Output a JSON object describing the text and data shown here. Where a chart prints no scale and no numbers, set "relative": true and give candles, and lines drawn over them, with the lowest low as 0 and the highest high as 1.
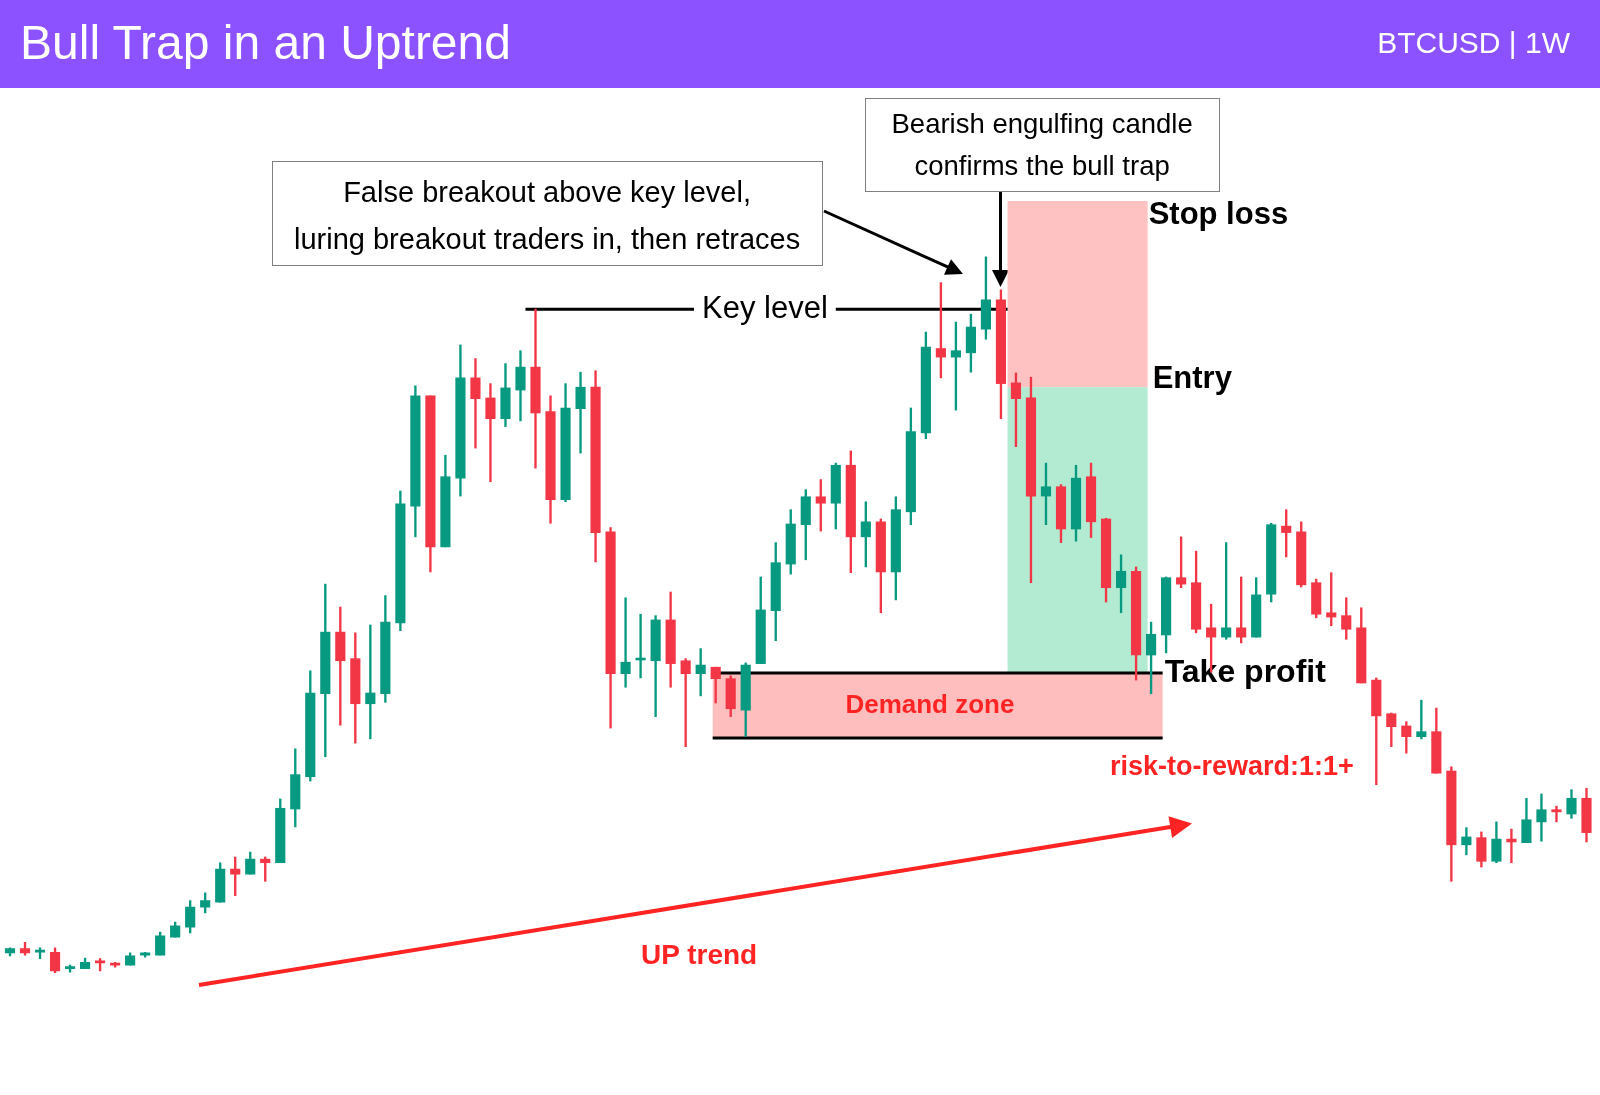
{
  "chart_data": {
    "type": "candlestick",
    "title": "Bull Trap in an Uptrend",
    "subtitle": "BTCUSD | 1W",
    "relative": true,
    "categories": [
      null,
      null,
      null,
      null,
      null,
      null,
      null,
      null,
      null,
      null,
      null,
      null,
      null,
      null,
      null,
      null,
      null,
      null,
      null,
      null,
      null,
      null,
      null,
      null,
      null,
      null,
      null,
      null,
      null,
      null,
      null,
      null,
      null,
      null,
      null,
      null,
      null,
      null,
      null,
      null,
      null,
      null,
      null,
      null,
      null,
      null,
      null,
      null,
      null,
      null,
      null,
      null,
      null,
      null,
      null,
      null,
      null,
      null,
      null,
      null,
      null,
      null,
      null,
      null,
      null,
      null,
      null,
      null,
      null,
      null,
      null,
      null,
      null,
      null,
      null,
      null,
      null,
      null,
      null,
      null,
      null,
      null,
      null,
      null,
      null,
      null,
      null,
      null,
      null,
      null,
      null,
      null,
      null,
      null,
      null,
      null,
      null,
      null,
      null,
      null,
      null,
      null,
      null,
      null,
      null,
      null
    ],
    "ohlc": [
      [
        0.028,
        0.035,
        0.024,
        0.034
      ],
      [
        0.034,
        0.043,
        0.025,
        0.028
      ],
      [
        0.029,
        0.035,
        0.02,
        0.032
      ],
      [
        0.029,
        0.035,
        0,
        0.003
      ],
      [
        0.006,
        0.011,
        0.001,
        0.008
      ],
      [
        0.006,
        0.021,
        0.006,
        0.015
      ],
      [
        0.017,
        0.02,
        0.003,
        0.014
      ],
      [
        0.014,
        0.015,
        0.008,
        0.011
      ],
      [
        0.011,
        0.028,
        0.011,
        0.024
      ],
      [
        0.025,
        0.029,
        0.022,
        0.028
      ],
      [
        0.025,
        0.057,
        0.025,
        0.052
      ],
      [
        0.05,
        0.071,
        0.05,
        0.066
      ],
      [
        0.064,
        0.101,
        0.056,
        0.092
      ],
      [
        0.092,
        0.112,
        0.084,
        0.101
      ],
      [
        0.099,
        0.154,
        0.099,
        0.145
      ],
      [
        0.145,
        0.162,
        0.108,
        0.138
      ],
      [
        0.138,
        0.169,
        0.138,
        0.159
      ],
      [
        0.159,
        0.162,
        0.128,
        0.154
      ],
      [
        0.154,
        0.243,
        0.154,
        0.23
      ],
      [
        0.229,
        0.313,
        0.204,
        0.277
      ],
      [
        0.274,
        0.422,
        0.268,
        0.391
      ],
      [
        0.39,
        0.543,
        0.302,
        0.476
      ],
      [
        0.476,
        0.511,
        0.346,
        0.436
      ],
      [
        0.439,
        0.475,
        0.321,
        0.376
      ],
      [
        0.376,
        0.486,
        0.327,
        0.391
      ],
      [
        0.39,
        0.527,
        0.378,
        0.49
      ],
      [
        0.489,
        0.673,
        0.478,
        0.655
      ],
      [
        0.652,
        0.82,
        0.609,
        0.806
      ],
      [
        0.806,
        0.806,
        0.56,
        0.595
      ],
      [
        0.595,
        0.723,
        0.595,
        0.693
      ],
      [
        0.691,
        0.877,
        0.666,
        0.831
      ],
      [
        0.831,
        0.858,
        0.733,
        0.802
      ],
      [
        0.803,
        0.823,
        0.686,
        0.774
      ],
      [
        0.774,
        0.851,
        0.763,
        0.817
      ],
      [
        0.814,
        0.869,
        0.771,
        0.846
      ],
      [
        0.846,
        0.927,
        0.705,
        0.782
      ],
      [
        0.784,
        0.806,
        0.628,
        0.661
      ],
      [
        0.661,
        0.823,
        0.658,
        0.789
      ],
      [
        0.788,
        0.839,
        0.726,
        0.818
      ],
      [
        0.818,
        0.841,
        0.574,
        0.615
      ],
      [
        0.616,
        0.622,
        0.342,
        0.418
      ],
      [
        0.418,
        0.524,
        0.399,
        0.434
      ],
      [
        0.437,
        0.501,
        0.412,
        0.439
      ],
      [
        0.436,
        0.499,
        0.358,
        0.493
      ],
      [
        0.493,
        0.532,
        0.399,
        0.432
      ],
      [
        0.436,
        0.439,
        0.316,
        0.418
      ],
      [
        0.418,
        0.453,
        0.387,
        0.43
      ],
      [
        0.427,
        0.427,
        0.377,
        0.411
      ],
      [
        0.411,
        0.415,
        0.358,
        0.369
      ],
      [
        0.367,
        0.433,
        0.33,
        0.43
      ],
      [
        0.432,
        0.553,
        0.432,
        0.507
      ],
      [
        0.506,
        0.601,
        0.464,
        0.573
      ],
      [
        0.571,
        0.647,
        0.557,
        0.627
      ],
      [
        0.626,
        0.675,
        0.577,
        0.665
      ],
      [
        0.665,
        0.689,
        0.617,
        0.656
      ],
      [
        0.656,
        0.712,
        0.62,
        0.709
      ],
      [
        0.709,
        0.729,
        0.559,
        0.609
      ],
      [
        0.609,
        0.658,
        0.567,
        0.63
      ],
      [
        0.63,
        0.634,
        0.503,
        0.56
      ],
      [
        0.56,
        0.665,
        0.521,
        0.647
      ],
      [
        0.644,
        0.789,
        0.626,
        0.756
      ],
      [
        0.754,
        0.895,
        0.746,
        0.874
      ],
      [
        0.872,
        0.964,
        0.831,
        0.86
      ],
      [
        0.86,
        0.909,
        0.786,
        0.869
      ],
      [
        0.866,
        0.92,
        0.839,
        0.902
      ],
      [
        0.899,
        1,
        0.885,
        0.94
      ],
      [
        0.94,
        0.954,
        0.774,
        0.823
      ],
      [
        0.824,
        0.838,
        0.735,
        0.802
      ],
      [
        0.803,
        0.832,
        0.545,
        0.666
      ],
      [
        0.666,
        0.712,
        0.626,
        0.679
      ],
      [
        0.679,
        0.682,
        0.601,
        0.62
      ],
      [
        0.62,
        0.709,
        0.603,
        0.691
      ],
      [
        0.693,
        0.712,
        0.608,
        0.63
      ],
      [
        0.634,
        0.635,
        0.518,
        0.538
      ],
      [
        0.538,
        0.584,
        0.503,
        0.561
      ],
      [
        0.561,
        0.567,
        0.409,
        0.444
      ],
      [
        0.444,
        0.49,
        0.39,
        0.473
      ],
      [
        0.472,
        0.553,
        0.447,
        0.552
      ],
      [
        0.552,
        0.609,
        0.538,
        0.543
      ],
      [
        0.545,
        0.589,
        0.475,
        0.48
      ],
      [
        0.482,
        0.515,
        0.42,
        0.469
      ],
      [
        0.469,
        0.601,
        0.466,
        0.482
      ],
      [
        0.482,
        0.553,
        0.461,
        0.469
      ],
      [
        0.469,
        0.552,
        0.469,
        0.528
      ],
      [
        0.529,
        0.628,
        0.518,
        0.626
      ],
      [
        0.624,
        0.647,
        0.581,
        0.615
      ],
      [
        0.616,
        0.63,
        0.539,
        0.542
      ],
      [
        0.545,
        0.55,
        0.496,
        0.501
      ],
      [
        0.503,
        0.559,
        0.485,
        0.497
      ],
      [
        0.499,
        0.524,
        0.466,
        0.48
      ],
      [
        0.482,
        0.51,
        0.405,
        0.405
      ],
      [
        0.409,
        0.412,
        0.263,
        0.359
      ],
      [
        0.362,
        0.363,
        0.316,
        0.344
      ],
      [
        0.345,
        0.351,
        0.307,
        0.33
      ],
      [
        0.33,
        0.381,
        0.327,
        0.337
      ],
      [
        0.337,
        0.37,
        0.279,
        0.279
      ],
      [
        0.282,
        0.288,
        0.128,
        0.179
      ],
      [
        0.179,
        0.203,
        0.165,
        0.19
      ],
      [
        0.189,
        0.197,
        0.148,
        0.156
      ],
      [
        0.156,
        0.211,
        0.154,
        0.187
      ],
      [
        0.187,
        0.201,
        0.154,
        0.183
      ],
      [
        0.182,
        0.244,
        0.182,
        0.214
      ],
      [
        0.211,
        0.25,
        0.184,
        0.228
      ],
      [
        0.228,
        0.233,
        0.211,
        0.225
      ],
      [
        0.222,
        0.256,
        0.216,
        0.244
      ],
      [
        0.244,
        0.258,
        0.183,
        0.196
      ]
    ],
    "colors": [
      "#089981",
      "#f23645",
      "#089981",
      "#f23645",
      "#089981",
      "#089981",
      "#f23645",
      "#f23645",
      "#089981",
      "#089981",
      "#089981",
      "#089981",
      "#089981",
      "#089981",
      "#089981",
      "#f23645",
      "#089981",
      "#f23645",
      "#089981",
      "#089981",
      "#089981",
      "#089981",
      "#f23645",
      "#f23645",
      "#089981",
      "#089981",
      "#089981",
      "#089981",
      "#f23645",
      "#089981",
      "#089981",
      "#f23645",
      "#f23645",
      "#089981",
      "#089981",
      "#f23645",
      "#f23645",
      "#089981",
      "#089981",
      "#f23645",
      "#f23645",
      "#089981",
      "#089981",
      "#089981",
      "#f23645",
      "#f23645",
      "#089981",
      "#f23645",
      "#f23645",
      "#089981",
      "#089981",
      "#089981",
      "#089981",
      "#089981",
      "#f23645",
      "#089981",
      "#f23645",
      "#089981",
      "#f23645",
      "#089981",
      "#089981",
      "#089981",
      "#f23645",
      "#089981",
      "#089981",
      "#089981",
      "#f23645",
      "#f23645",
      "#f23645",
      "#089981",
      "#f23645",
      "#089981",
      "#f23645",
      "#f23645",
      "#089981",
      "#f23645",
      "#089981",
      "#089981",
      "#f23645",
      "#f23645",
      "#f23645",
      "#089981",
      "#f23645",
      "#089981",
      "#089981",
      "#f23645",
      "#f23645",
      "#f23645",
      "#f23645",
      "#f23645",
      "#f23645",
      "#f23645",
      "#f23645",
      "#f23645",
      "#089981",
      "#f23645",
      "#f23645",
      "#089981",
      "#f23645",
      "#089981",
      "#f23645",
      "#089981",
      "#089981",
      "#f23645",
      "#089981",
      "#f23645"
    ],
    "bands": [
      {
        "axis": "y",
        "from": 0.818,
        "to": 1.078,
        "label": "Stop loss",
        "color": "#ffc2c2"
      },
      {
        "axis": "y",
        "from": 0.419,
        "to": 0.818,
        "label": "Entry",
        "color": "#b2ebd2"
      },
      {
        "axis": "y",
        "from": 0.328,
        "to": 0.419,
        "label": "Demand zone",
        "color": "#ffbebe"
      }
    ],
    "ref_lines": [
      {
        "axis": "y",
        "value": 0.927,
        "label": "Key level",
        "color": "#000000"
      },
      {
        "axis": "y",
        "value": 0.419,
        "label": "Take profit",
        "color": "#000000"
      },
      {
        "axis": "y",
        "value": 0.328,
        "color": "#000000"
      }
    ],
    "annotations": [
      "False breakout above key level,\nluring breakout traders in, then retraces",
      "Bearish engulfing candle\nconfirms the bull trap",
      "risk-to-reward:1:1+",
      "UP trend"
    ]
  }
}
